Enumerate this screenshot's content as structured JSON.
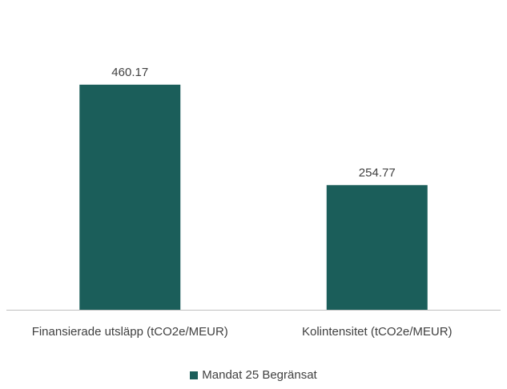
{
  "chart_data": {
    "type": "bar",
    "categories": [
      "Finansierade utsläpp (tCO2e/MEUR)",
      "Kolintensitet (tCO2e/MEUR)"
    ],
    "series": [
      {
        "name": "Mandat 25 Begränsat",
        "values": [
          460.17,
          254.77
        ],
        "labels": [
          "460.17",
          "254.77"
        ],
        "color": "#1b5e5a"
      }
    ],
    "title": "",
    "xlabel": "",
    "ylabel": "",
    "ylim": [
      0,
      540
    ],
    "grid": false,
    "legend_position": "bottom"
  }
}
